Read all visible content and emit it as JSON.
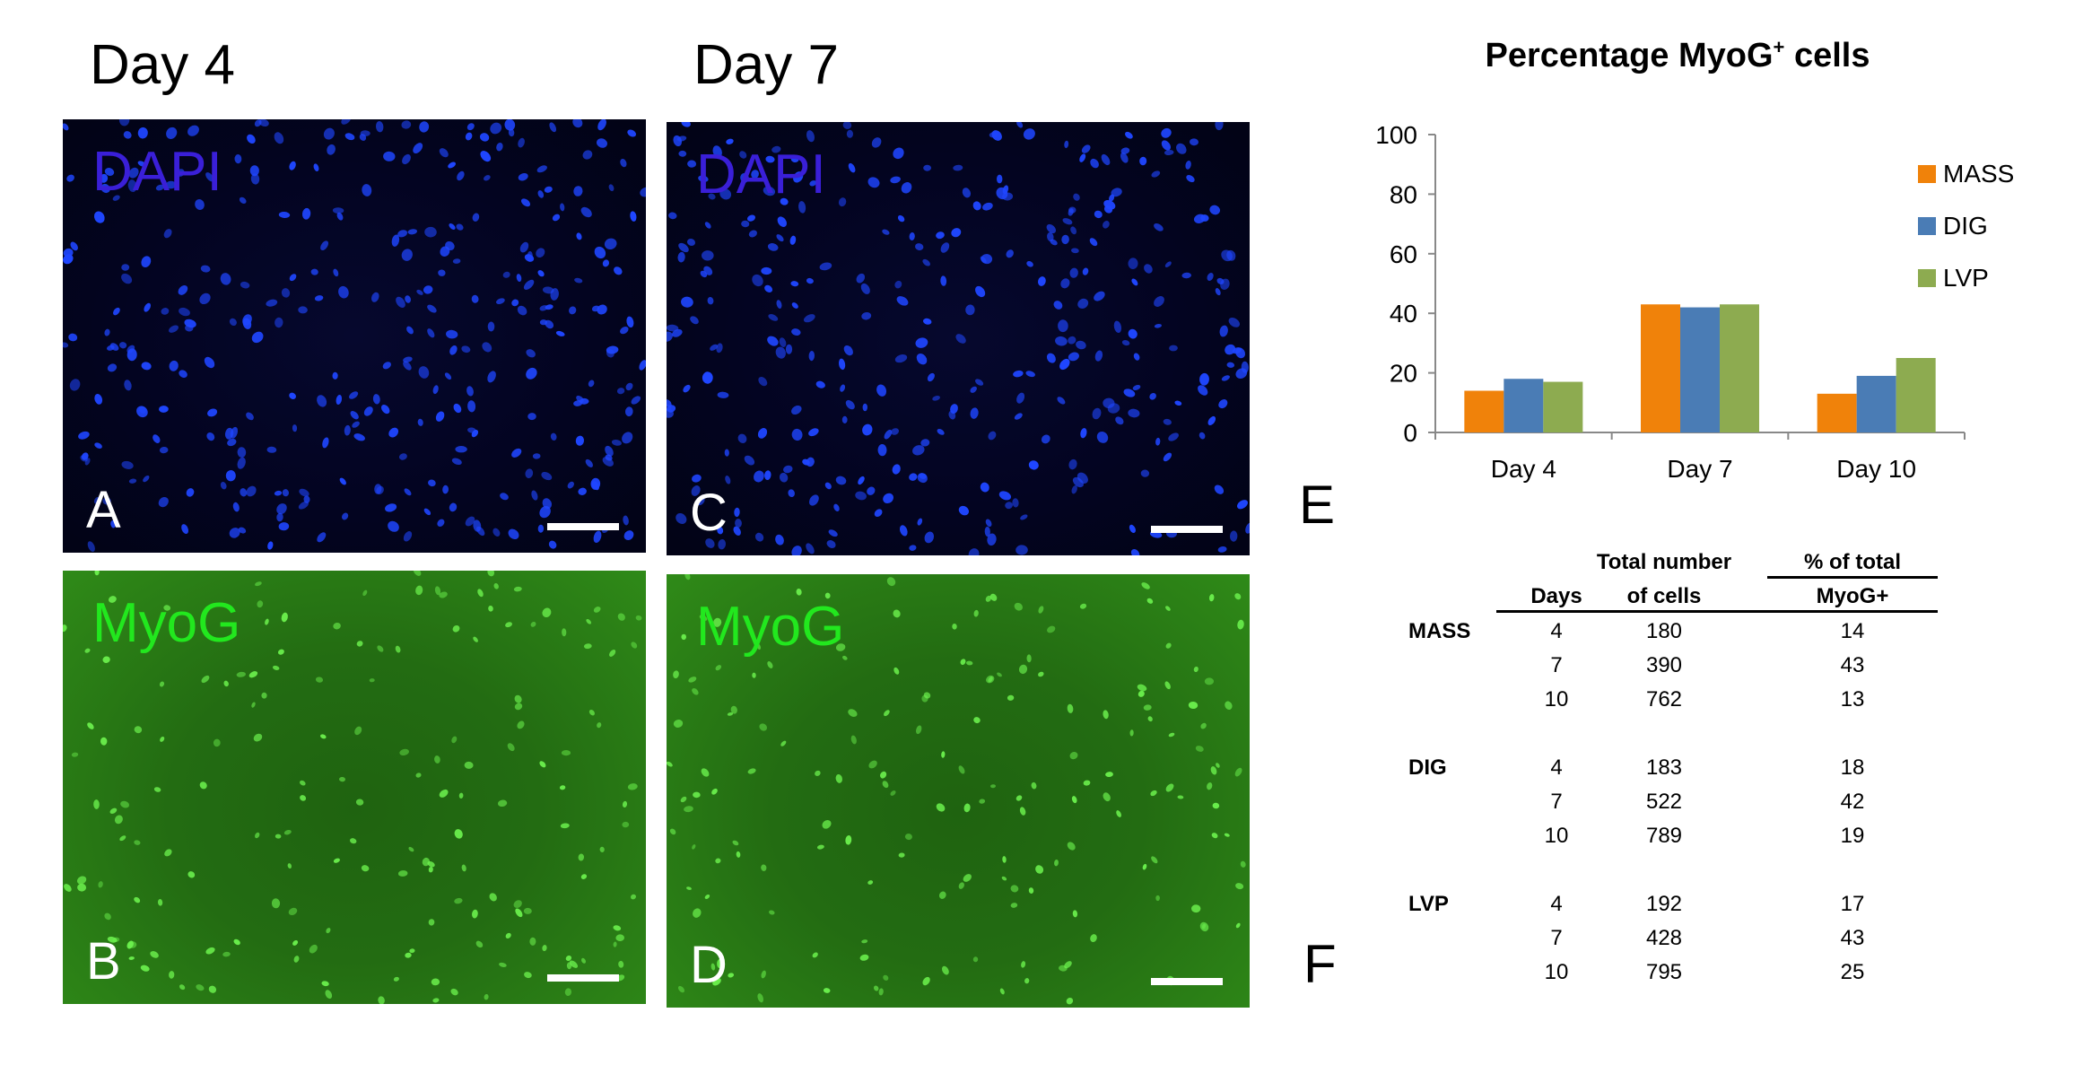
{
  "columns": {
    "day4": "Day 4",
    "day7": "Day 7"
  },
  "panels": {
    "A": {
      "letter": "A",
      "stain": "DAPI"
    },
    "B": {
      "letter": "B",
      "stain": "MyoG"
    },
    "C": {
      "letter": "C",
      "stain": "DAPI"
    },
    "D": {
      "letter": "D",
      "stain": "MyoG"
    },
    "E": {
      "letter": "E"
    },
    "F": {
      "letter": "F"
    }
  },
  "colors": {
    "dapi_label": "#3a1fd8",
    "myog_label": "#22e81e",
    "nuclei_blue": "#1f46ff",
    "nuclei_green": "#6cf24e"
  },
  "chart_data": {
    "type": "bar",
    "title": "Percentage MyoG",
    "title_superscript": "+",
    "title_suffix": " cells",
    "categories": [
      "Day 4",
      "Day 7",
      "Day 10"
    ],
    "series": [
      {
        "name": "MASS",
        "color": "#f0820a",
        "values": [
          14,
          43,
          13
        ]
      },
      {
        "name": "DIG",
        "color": "#4a7cb5",
        "values": [
          18,
          42,
          19
        ]
      },
      {
        "name": "LVP",
        "color": "#8dab50",
        "values": [
          17,
          43,
          25
        ]
      }
    ],
    "ylim": [
      0,
      100
    ],
    "yticks": [
      0,
      20,
      40,
      60,
      80,
      100
    ],
    "grid": false,
    "legend_position": "right"
  },
  "table": {
    "headers": {
      "days": "Days",
      "total_line1": "Total number",
      "total_line2": "of cells",
      "pct_line1": "% of total",
      "pct_line2": "MyoG+"
    },
    "groups": [
      {
        "name": "MASS",
        "rows": [
          [
            "4",
            "180",
            "14"
          ],
          [
            "7",
            "390",
            "43"
          ],
          [
            "10",
            "762",
            "13"
          ]
        ]
      },
      {
        "name": "DIG",
        "rows": [
          [
            "4",
            "183",
            "18"
          ],
          [
            "7",
            "522",
            "42"
          ],
          [
            "10",
            "789",
            "19"
          ]
        ]
      },
      {
        "name": "LVP",
        "rows": [
          [
            "4",
            "192",
            "17"
          ],
          [
            "7",
            "428",
            "43"
          ],
          [
            "10",
            "795",
            "25"
          ]
        ]
      }
    ]
  }
}
